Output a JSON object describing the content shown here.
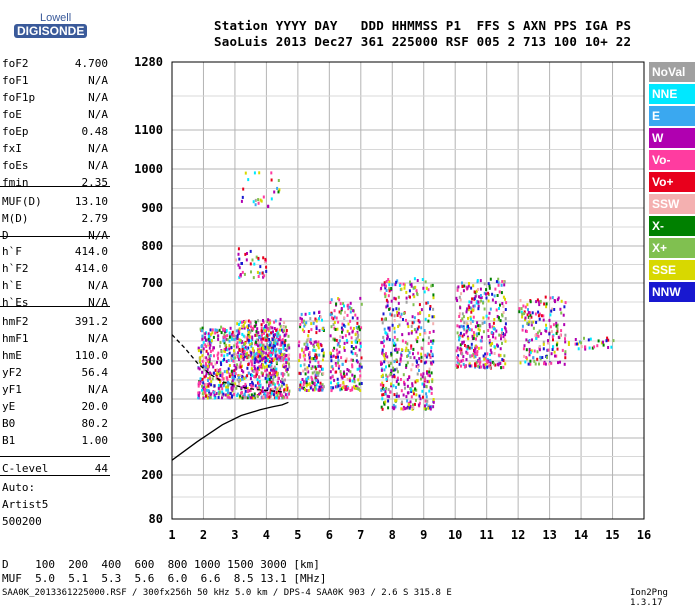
{
  "logo": {
    "top": "Lowell",
    "bottom": "DIGISONDE"
  },
  "header": {
    "line1": "Station YYYY DAY   DDD HHMMSS P1  FFS S AXN PPS IGA PS",
    "line2": "SaoLuis 2013 Dec27 361 225000 RSF 005 2 713 100 10+ 22"
  },
  "params": [
    {
      "name": "foF2",
      "value": "4.700"
    },
    {
      "name": "foF1",
      "value": "N/A"
    },
    {
      "name": "foF1p",
      "value": "N/A"
    },
    {
      "name": "foE",
      "value": "N/A"
    },
    {
      "name": "foEp",
      "value": "0.48"
    },
    {
      "name": "fxI",
      "value": "N/A"
    },
    {
      "name": "foEs",
      "value": "N/A"
    },
    {
      "name": "fmin",
      "value": "2.35"
    },
    {
      "name": "MUF(D)",
      "value": "13.10"
    },
    {
      "name": "M(D)",
      "value": "2.79"
    },
    {
      "name": "D",
      "value": "N/A"
    },
    {
      "name": "h`F",
      "value": "414.0"
    },
    {
      "name": "h`F2",
      "value": "414.0"
    },
    {
      "name": "h`E",
      "value": "N/A"
    },
    {
      "name": "h`Es",
      "value": "N/A"
    },
    {
      "name": "hmF2",
      "value": "391.2"
    },
    {
      "name": "hmF1",
      "value": "N/A"
    },
    {
      "name": "hmE",
      "value": "110.0"
    },
    {
      "name": "yF2",
      "value": "56.4"
    },
    {
      "name": "yF1",
      "value": "N/A"
    },
    {
      "name": "yE",
      "value": "20.0"
    },
    {
      "name": "B0",
      "value": "80.2"
    },
    {
      "name": "B1",
      "value": "1.00"
    },
    {
      "name": "C-level",
      "value": "44"
    }
  ],
  "auto": {
    "label": "Auto:",
    "artist": "Artist5",
    "code": "500200"
  },
  "legend": [
    {
      "label": "NoVal",
      "color": "#a0a0a0"
    },
    {
      "label": "NNE",
      "color": "#00e8ff"
    },
    {
      "label": "E",
      "color": "#3aa8f0"
    },
    {
      "label": "W",
      "color": "#b000b0"
    },
    {
      "label": "Vo-",
      "color": "#ff3ca0"
    },
    {
      "label": "Vo+",
      "color": "#e8001c"
    },
    {
      "label": "SSW",
      "color": "#f4b0b0"
    },
    {
      "label": "X-",
      "color": "#008000"
    },
    {
      "label": "X+",
      "color": "#80c050"
    },
    {
      "label": "SSE",
      "color": "#d8d800"
    },
    {
      "label": "NNW",
      "color": "#1818d0"
    }
  ],
  "chart_data": {
    "type": "scatter",
    "x_ticks": [
      "1",
      "2",
      "3",
      "4",
      "5",
      "6",
      "7",
      "8",
      "9",
      "10",
      "11",
      "12",
      "13",
      "14",
      "15",
      "16"
    ],
    "y_ticks": [
      "80",
      "200",
      "300",
      "400",
      "500",
      "600",
      "700",
      "800",
      "900",
      "1000",
      "1100",
      "1280"
    ],
    "xlim": [
      1,
      16
    ],
    "grid": true,
    "clusters": [
      {
        "x": [
          1.8,
          4.7
        ],
        "y": [
          410,
          600
        ],
        "density": 900
      },
      {
        "x": [
          3.0,
          4.6
        ],
        "y": [
          510,
          620
        ],
        "density": 200
      },
      {
        "x": [
          3.0,
          4.0
        ],
        "y": [
          730,
          810
        ],
        "density": 40
      },
      {
        "x": [
          3.0,
          4.4
        ],
        "y": [
          920,
          1010
        ],
        "density": 25
      },
      {
        "x": [
          5.0,
          5.8
        ],
        "y": [
          430,
          640
        ],
        "density": 200
      },
      {
        "x": [
          6.0,
          7.0
        ],
        "y": [
          430,
          680
        ],
        "density": 220
      },
      {
        "x": [
          7.6,
          9.3
        ],
        "y": [
          380,
          730
        ],
        "density": 450
      },
      {
        "x": [
          10.0,
          11.6
        ],
        "y": [
          490,
          730
        ],
        "density": 350
      },
      {
        "x": [
          12.0,
          13.5
        ],
        "y": [
          500,
          680
        ],
        "density": 180
      },
      {
        "x": [
          13.5,
          15.0
        ],
        "y": [
          540,
          570
        ],
        "density": 30
      }
    ],
    "trace": {
      "f": [
        1.0,
        1.8,
        2.6,
        3.2,
        3.8,
        4.2,
        4.5,
        4.7
      ],
      "h": [
        240,
        290,
        335,
        360,
        375,
        383,
        388,
        395
      ]
    },
    "dashed_trace": {
      "f": [
        1.0,
        1.4,
        1.8,
        2.2,
        2.6,
        3.0,
        3.4,
        3.8,
        4.2,
        4.6
      ],
      "h": [
        575,
        540,
        500,
        470,
        450,
        440,
        432,
        428,
        425,
        422
      ]
    }
  },
  "footer": {
    "d_row": "D    100  200  400  600  800 1000 1500 3000 [km]",
    "muf_row": "MUF  5.0  5.1  5.3  5.6  6.0  6.6  8.5 13.1 [MHz]",
    "file": "SAA0K_2013361225000.RSF / 300fx256h 50 kHz 5.0 km / DPS-4 SAA0K 903 / 2.6 S 315.8 E",
    "version": "Ion2Png 1.3.17"
  }
}
